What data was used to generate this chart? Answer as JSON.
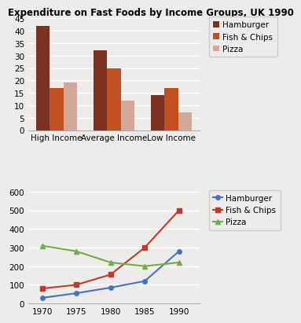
{
  "bar_title": "Expenditure on Fast Foods by Income Groups, UK 1990",
  "bar_categories": [
    "High Income",
    "Average Income",
    "Low Income"
  ],
  "bar_series": {
    "Hamburger": [
      42,
      32,
      14
    ],
    "Fish & Chips": [
      17,
      25,
      17
    ],
    "Pizza": [
      19,
      12,
      7
    ]
  },
  "bar_colors": {
    "Hamburger": "#7B3020",
    "Fish & Chips": "#C05020",
    "Pizza": "#D4A898"
  },
  "bar_ylim": [
    0,
    45
  ],
  "bar_yticks": [
    0,
    5,
    10,
    15,
    20,
    25,
    30,
    35,
    40,
    45
  ],
  "line_years": [
    1970,
    1975,
    1980,
    1985,
    1990
  ],
  "line_series": {
    "Hamburger": [
      30,
      55,
      85,
      120,
      280
    ],
    "Fish & Chips": [
      80,
      100,
      155,
      300,
      500
    ],
    "Pizza": [
      310,
      280,
      220,
      200,
      220
    ]
  },
  "line_colors": {
    "Hamburger": "#4472C4",
    "Fish & Chips": "#C0392B",
    "Pizza": "#70AD47"
  },
  "line_markers": {
    "Hamburger": "o",
    "Fish & Chips": "s",
    "Pizza": "^"
  },
  "line_ylim": [
    0,
    600
  ],
  "line_yticks": [
    0,
    100,
    200,
    300,
    400,
    500,
    600
  ],
  "line_xticks": [
    1970,
    1975,
    1980,
    1985,
    1990
  ],
  "background_color": "#EDECEA",
  "plot_bg_color": "#EDECEA",
  "grid_color": "#FFFFFF",
  "title_fontsize": 8.5,
  "label_fontsize": 7.5,
  "legend_fontsize": 7.5,
  "tick_fontsize": 7.5
}
